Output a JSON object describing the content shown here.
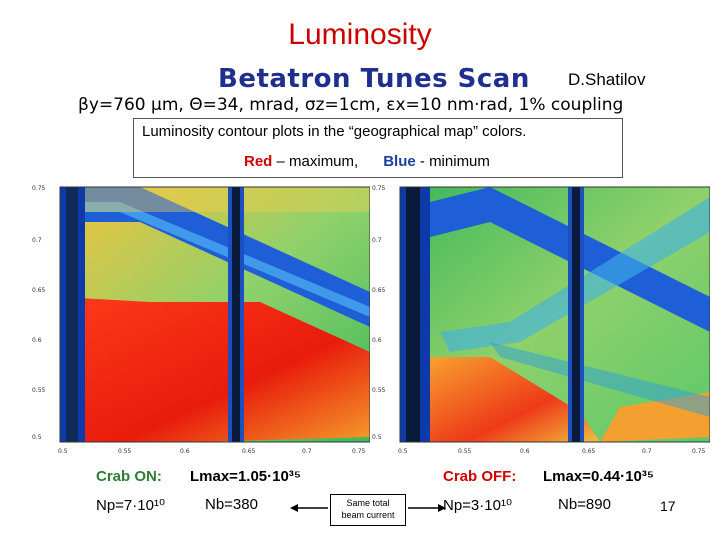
{
  "slide": {
    "title": "Luminosity",
    "subtitle": "Betatron Tunes Scan",
    "author": "D.Shatilov",
    "params": "βy=760 μm, Θ=34, mrad, σz=1cm, εx=10 nm·rad, 1% coupling",
    "legend_line1": "Luminosity contour plots in the “geographical map” colors.",
    "legend_red": "Red",
    "legend_red_text": " – maximum,",
    "legend_blue": "Blue",
    "legend_blue_text": " - minimum",
    "page_number": "17"
  },
  "crab_on": {
    "label": "Crab ON:",
    "lmax": "Lmax=1.05·10³⁵",
    "np": "Np=7·10¹⁰",
    "nb": "Nb=380"
  },
  "crab_off": {
    "label": "Crab OFF:",
    "lmax": "Lmax=0.44·10³⁵",
    "np": "Np=3·10¹⁰",
    "nb": "Nb=890"
  },
  "beam_note": {
    "line1": "Same total",
    "line2": "beam current"
  },
  "chart_data": [
    {
      "type": "heatmap",
      "title": "Crab ON",
      "y_ticks": [
        "0.75",
        "0.7",
        "0.65",
        "0.6",
        "0.55",
        "0.5"
      ],
      "x_ticks": [
        "0.5",
        "0.55",
        "0.6",
        "0.65",
        "0.7",
        "0.75"
      ],
      "xlim": [
        0.5,
        0.75
      ],
      "ylim": [
        0.5,
        0.75
      ],
      "colors": {
        "max": "#d00000",
        "min": "#1f3fa0"
      }
    },
    {
      "type": "heatmap",
      "title": "Crab OFF",
      "y_ticks": [
        "0.75",
        "0.7",
        "0.65",
        "0.6",
        "0.55",
        "0.5"
      ],
      "x_ticks": [
        "0.5",
        "0.55",
        "0.6",
        "0.65",
        "0.7",
        "0.75"
      ],
      "xlim": [
        0.5,
        0.75
      ],
      "ylim": [
        0.5,
        0.75
      ],
      "colors": {
        "max": "#d00000",
        "min": "#1f3fa0"
      }
    }
  ]
}
